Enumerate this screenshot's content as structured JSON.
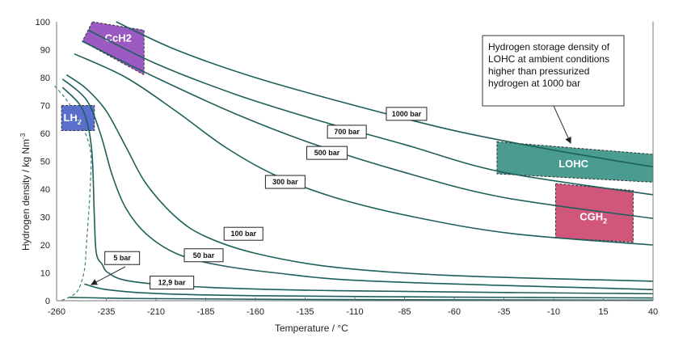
{
  "chart_data": {
    "type": "line",
    "title": "",
    "xlabel": "Temperature / °C",
    "ylabel": "Hydrogen density / kg Nm",
    "ylabel_superscript": "-3",
    "xlim": [
      -260,
      40
    ],
    "ylim": [
      0,
      100
    ],
    "xticks": [
      "-260",
      "-235",
      "-210",
      "-185",
      "-160",
      "-135",
      "-110",
      "-85",
      "-60",
      "-35",
      "-10",
      "15",
      "40"
    ],
    "yticks": [
      "0",
      "10",
      "20",
      "30",
      "40",
      "50",
      "60",
      "70",
      "80",
      "90",
      "100"
    ],
    "grid": false,
    "line_color": "#1d5f5b",
    "series": [
      {
        "name": "1000 bar",
        "points": [
          [
            -230,
            100
          ],
          [
            -200,
            90
          ],
          [
            -160,
            80
          ],
          [
            -110,
            70
          ],
          [
            -60,
            61
          ],
          [
            -10,
            54
          ],
          [
            40,
            48
          ]
        ]
      },
      {
        "name": "700 bar",
        "points": [
          [
            -244,
            97
          ],
          [
            -210,
            85
          ],
          [
            -170,
            74
          ],
          [
            -130,
            65
          ],
          [
            -85,
            56
          ],
          [
            -35,
            46
          ],
          [
            40,
            38
          ]
        ]
      },
      {
        "name": "500 bar",
        "points": [
          [
            -247,
            93
          ],
          [
            -210,
            80
          ],
          [
            -170,
            67
          ],
          [
            -130,
            56
          ],
          [
            -85,
            46
          ],
          [
            -35,
            37
          ],
          [
            40,
            29.5
          ]
        ]
      },
      {
        "name": "300 bar",
        "points": [
          [
            -251,
            88.5
          ],
          [
            -225,
            80
          ],
          [
            -200,
            68
          ],
          [
            -175,
            55
          ],
          [
            -150,
            45
          ],
          [
            -120,
            37
          ],
          [
            -80,
            30
          ],
          [
            -30,
            24
          ],
          [
            40,
            20
          ]
        ]
      },
      {
        "name": "100 bar",
        "points": [
          [
            -255,
            81
          ],
          [
            -245,
            76
          ],
          [
            -235,
            68
          ],
          [
            -225,
            55
          ],
          [
            -215,
            42
          ],
          [
            -200,
            30
          ],
          [
            -185,
            23
          ],
          [
            -160,
            17
          ],
          [
            -120,
            12
          ],
          [
            -60,
            9
          ],
          [
            40,
            7
          ]
        ]
      },
      {
        "name": "50 bar",
        "points": [
          [
            -257,
            79.5
          ],
          [
            -245,
            72
          ],
          [
            -238,
            60
          ],
          [
            -232,
            45
          ],
          [
            -225,
            33
          ],
          [
            -215,
            24
          ],
          [
            -200,
            17
          ],
          [
            -180,
            13
          ],
          [
            -150,
            10
          ],
          [
            -100,
            7
          ],
          [
            40,
            4
          ]
        ]
      },
      {
        "name": "12,9 bar",
        "points": [
          [
            -257,
            76.5
          ],
          [
            -248,
            70
          ],
          [
            -244,
            62
          ],
          [
            -242,
            51
          ],
          [
            -241,
            30
          ],
          [
            -240,
            17
          ],
          [
            -237,
            13
          ],
          [
            -234,
            10
          ],
          [
            -223,
            7
          ],
          [
            -190,
            5
          ],
          [
            -120,
            3.6
          ],
          [
            40,
            2.5
          ]
        ]
      },
      {
        "name": "5 bar",
        "points": [
          [
            -246,
            6
          ],
          [
            -235,
            4
          ],
          [
            -210,
            2.6
          ],
          [
            -160,
            1.8
          ],
          [
            -60,
            1.3
          ],
          [
            40,
            1
          ]
        ]
      },
      {
        "name": "",
        "points": [
          [
            -254,
            1.2
          ],
          [
            -220,
            0.8
          ],
          [
            -150,
            0.5
          ],
          [
            -50,
            0.3
          ],
          [
            40,
            0.2
          ]
        ]
      }
    ],
    "saturation_curve": {
      "style": "dashed",
      "points": [
        [
          -261,
          77
        ],
        [
          -255,
          72
        ],
        [
          -248,
          64
        ],
        [
          -243,
          54
        ],
        [
          -243,
          42
        ],
        [
          -244,
          30
        ],
        [
          -245,
          20
        ],
        [
          -246,
          11
        ],
        [
          -249,
          4
        ],
        [
          -253,
          1.5
        ],
        [
          -258,
          0
        ]
      ]
    },
    "regions": [
      {
        "name": "CcH2",
        "color": "#9b59c2",
        "polygon": [
          [
            -242,
            100
          ],
          [
            -216,
            97
          ],
          [
            -216,
            81
          ],
          [
            -247,
            93
          ]
        ]
      },
      {
        "name": "LH",
        "subscript": "2",
        "color": "#5b6fcf",
        "polygon": [
          [
            -257.5,
            70
          ],
          [
            -241,
            70
          ],
          [
            -241,
            61
          ],
          [
            -257.5,
            61
          ]
        ]
      },
      {
        "name": "LOHC",
        "color": "#4a9c90",
        "polygon": [
          [
            -38.5,
            57
          ],
          [
            40,
            52.5
          ],
          [
            40,
            42.5
          ],
          [
            -38.5,
            45.5
          ]
        ]
      },
      {
        "name": "CGH",
        "subscript": "2",
        "color": "#d0567c",
        "polygon": [
          [
            -9,
            42
          ],
          [
            30,
            39.5
          ],
          [
            30,
            21
          ],
          [
            -9,
            22.5
          ]
        ]
      }
    ],
    "annotations": [
      {
        "lines": [
          "Hydrogen storage density of",
          "LOHC at ambient conditions",
          "higher than pressurized",
          "hydrogen at 1000 bar"
        ]
      }
    ]
  }
}
